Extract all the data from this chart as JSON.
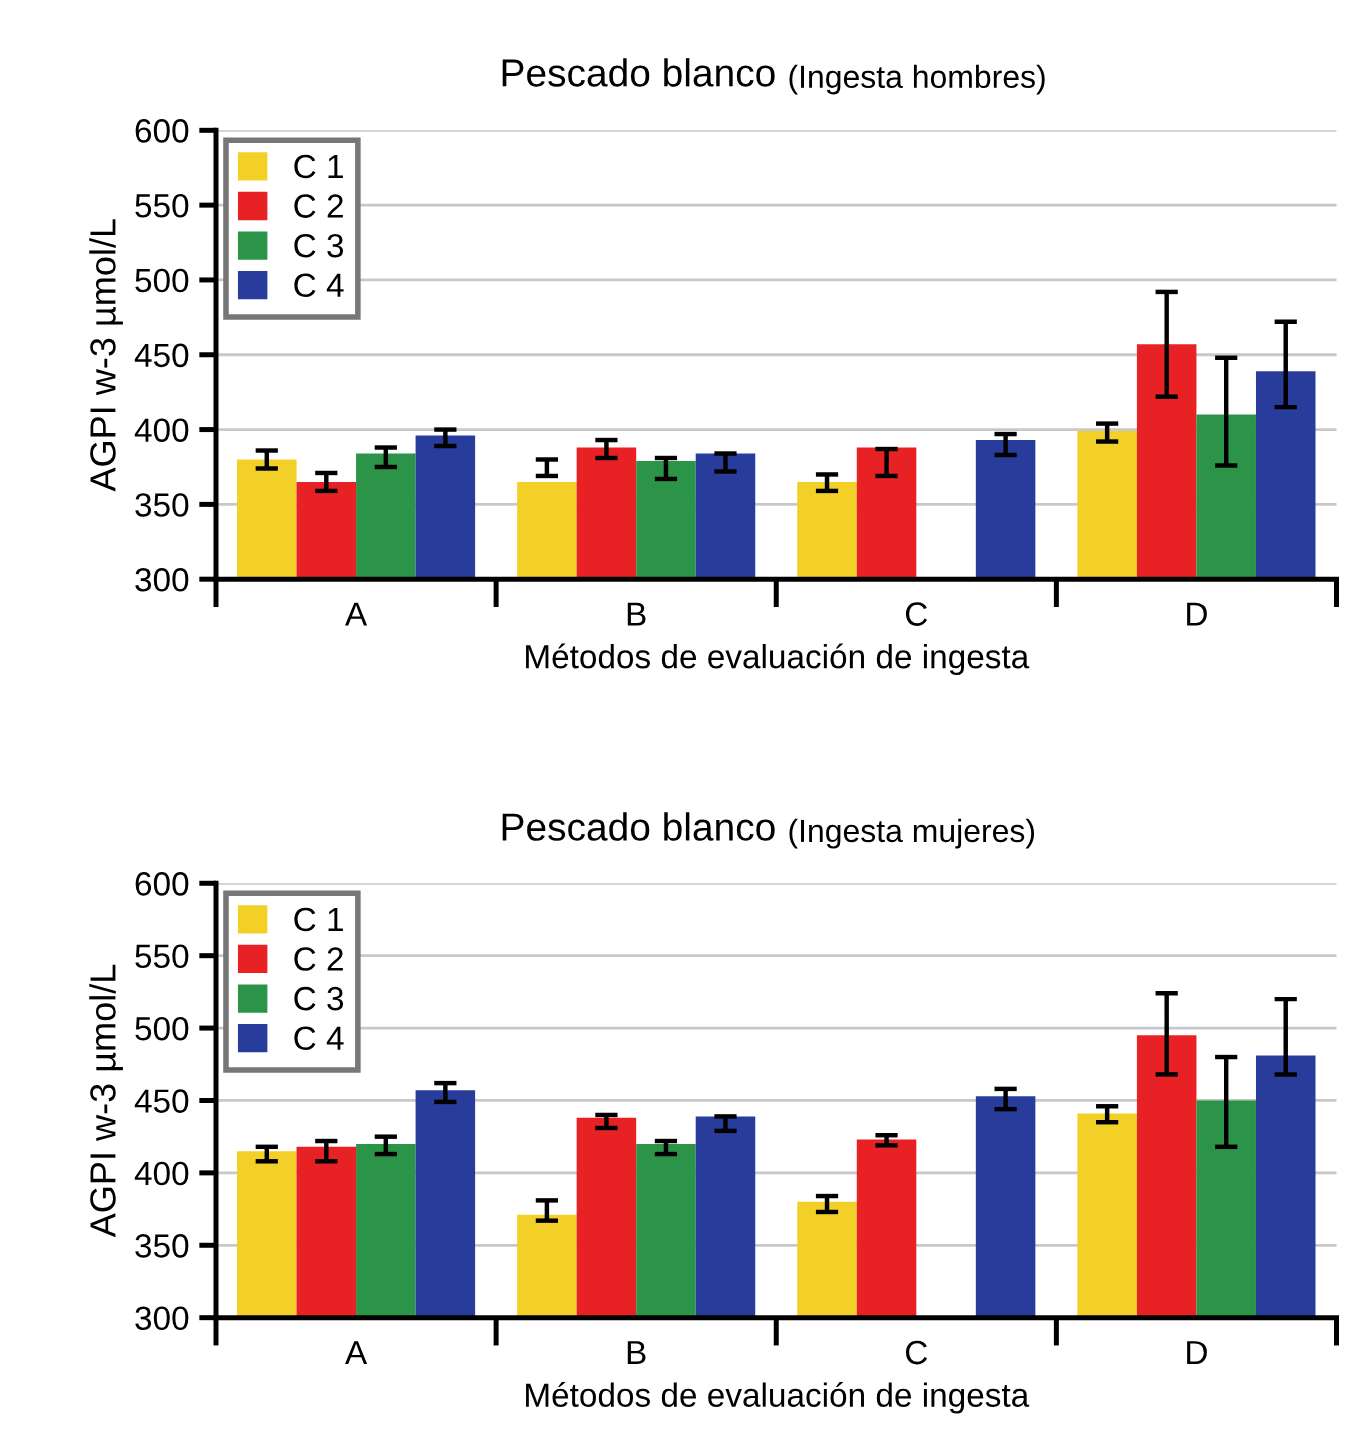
{
  "chart_data": [
    {
      "type": "bar",
      "title": "Pescado blanco",
      "subtitle": "(Ingesta hombres)",
      "xlabel": "Métodos de evaluación de ingesta",
      "ylabel": "AGPI w-3 µmol/L",
      "categories": [
        "A",
        "B",
        "C",
        "D"
      ],
      "ylim": [
        300,
        600
      ],
      "yticks": [
        300,
        350,
        400,
        450,
        500,
        550,
        600
      ],
      "grid": "y",
      "legend": "top left",
      "series": [
        {
          "name": "C 1",
          "color": "#f2d027",
          "values": [
            380,
            365,
            365,
            399
          ],
          "errors": [
            [
              374,
              386
            ],
            [
              369,
              380
            ],
            [
              359,
              370
            ],
            [
              392,
              404
            ]
          ]
        },
        {
          "name": "C 2",
          "color": "#e82224",
          "values": [
            365,
            388,
            388,
            457
          ],
          "errors": [
            [
              359,
              371
            ],
            [
              381,
              393
            ],
            [
              369,
              387
            ],
            [
              422,
              492
            ]
          ]
        },
        {
          "name": "C 3",
          "color": "#2b9448",
          "values": [
            384,
            379,
            null,
            410
          ],
          "errors": [
            [
              375,
              388
            ],
            [
              367,
              381
            ],
            null,
            [
              376,
              448
            ]
          ]
        },
        {
          "name": "C 4",
          "color": "#283c9c",
          "values": [
            396,
            384,
            393,
            439
          ],
          "errors": [
            [
              389,
              400
            ],
            [
              372,
              384
            ],
            [
              383,
              397
            ],
            [
              415,
              472
            ]
          ]
        }
      ]
    },
    {
      "type": "bar",
      "title": "Pescado blanco",
      "subtitle": "(Ingesta mujeres)",
      "xlabel": "Métodos de evaluación de ingesta",
      "ylabel": "AGPI w-3 µmol/L",
      "categories": [
        "A",
        "B",
        "C",
        "D"
      ],
      "ylim": [
        300,
        600
      ],
      "yticks": [
        300,
        350,
        400,
        450,
        500,
        550,
        600
      ],
      "grid": "y",
      "legend": "top left",
      "series": [
        {
          "name": "C 1",
          "color": "#f2d027",
          "values": [
            415,
            371,
            380,
            441
          ],
          "errors": [
            [
              408,
              418
            ],
            [
              367,
              381
            ],
            [
              373,
              384
            ],
            [
              435,
              446
            ]
          ]
        },
        {
          "name": "C 2",
          "color": "#e82224",
          "values": [
            418,
            438,
            423,
            495
          ],
          "errors": [
            [
              408,
              422
            ],
            [
              431,
              440
            ],
            [
              419,
              426
            ],
            [
              468,
              524
            ]
          ]
        },
        {
          "name": "C 3",
          "color": "#2b9448",
          "values": [
            420,
            420,
            null,
            450
          ],
          "errors": [
            [
              413,
              425
            ],
            [
              413,
              422
            ],
            null,
            [
              418,
              480
            ]
          ]
        },
        {
          "name": "C 4",
          "color": "#283c9c",
          "values": [
            457,
            439,
            453,
            481
          ],
          "errors": [
            [
              449,
              462
            ],
            [
              429,
              439
            ],
            [
              444,
              458
            ],
            [
              468,
              520
            ]
          ]
        }
      ]
    }
  ]
}
